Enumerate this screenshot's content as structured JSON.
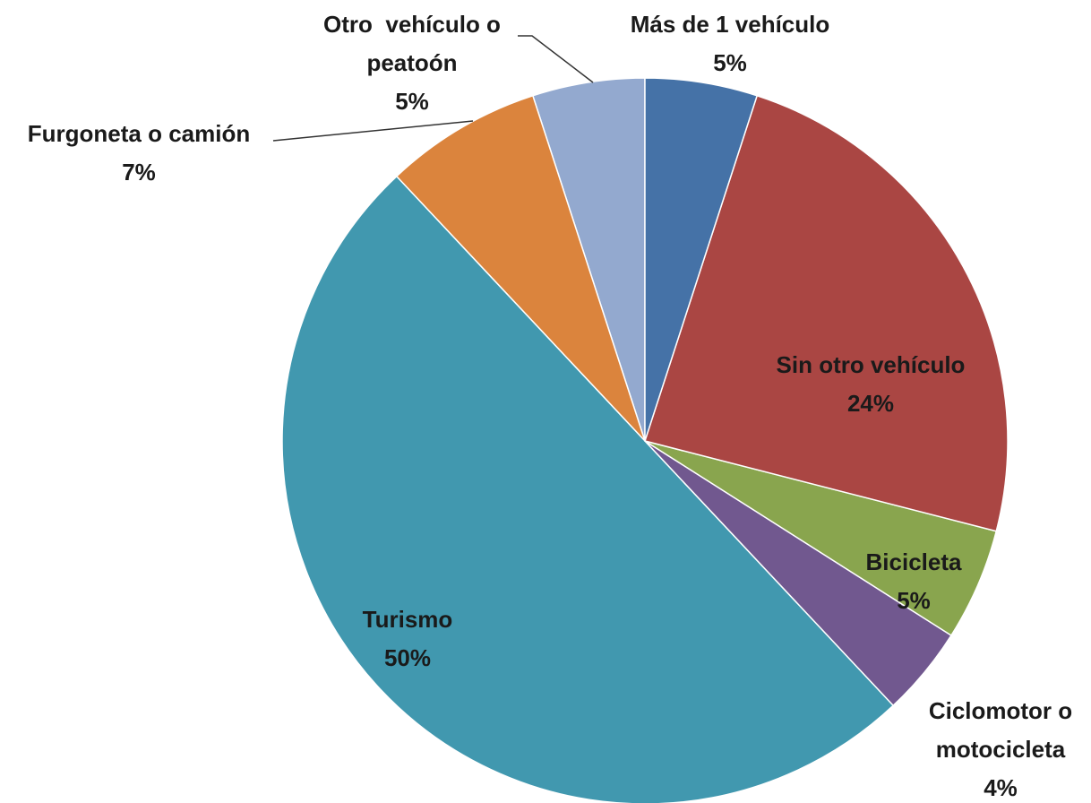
{
  "chart_data": {
    "type": "pie",
    "categories": [
      "Más de 1 vehículo",
      "Sin otro vehículo",
      "Bicicleta",
      "Ciclomotor o motocicleta",
      "Turismo",
      "Furgoneta o camión",
      "Otro  vehículo o peatoón"
    ],
    "values": [
      5,
      24,
      5,
      4,
      50,
      7,
      5
    ],
    "value_labels": [
      "5%",
      "24%",
      "5%",
      "4%",
      "50%",
      "7%",
      "5%"
    ],
    "colors": [
      "#4572a7",
      "#aa4643",
      "#89a54e",
      "#71588f",
      "#4198af",
      "#db843d",
      "#93a9cf"
    ]
  }
}
